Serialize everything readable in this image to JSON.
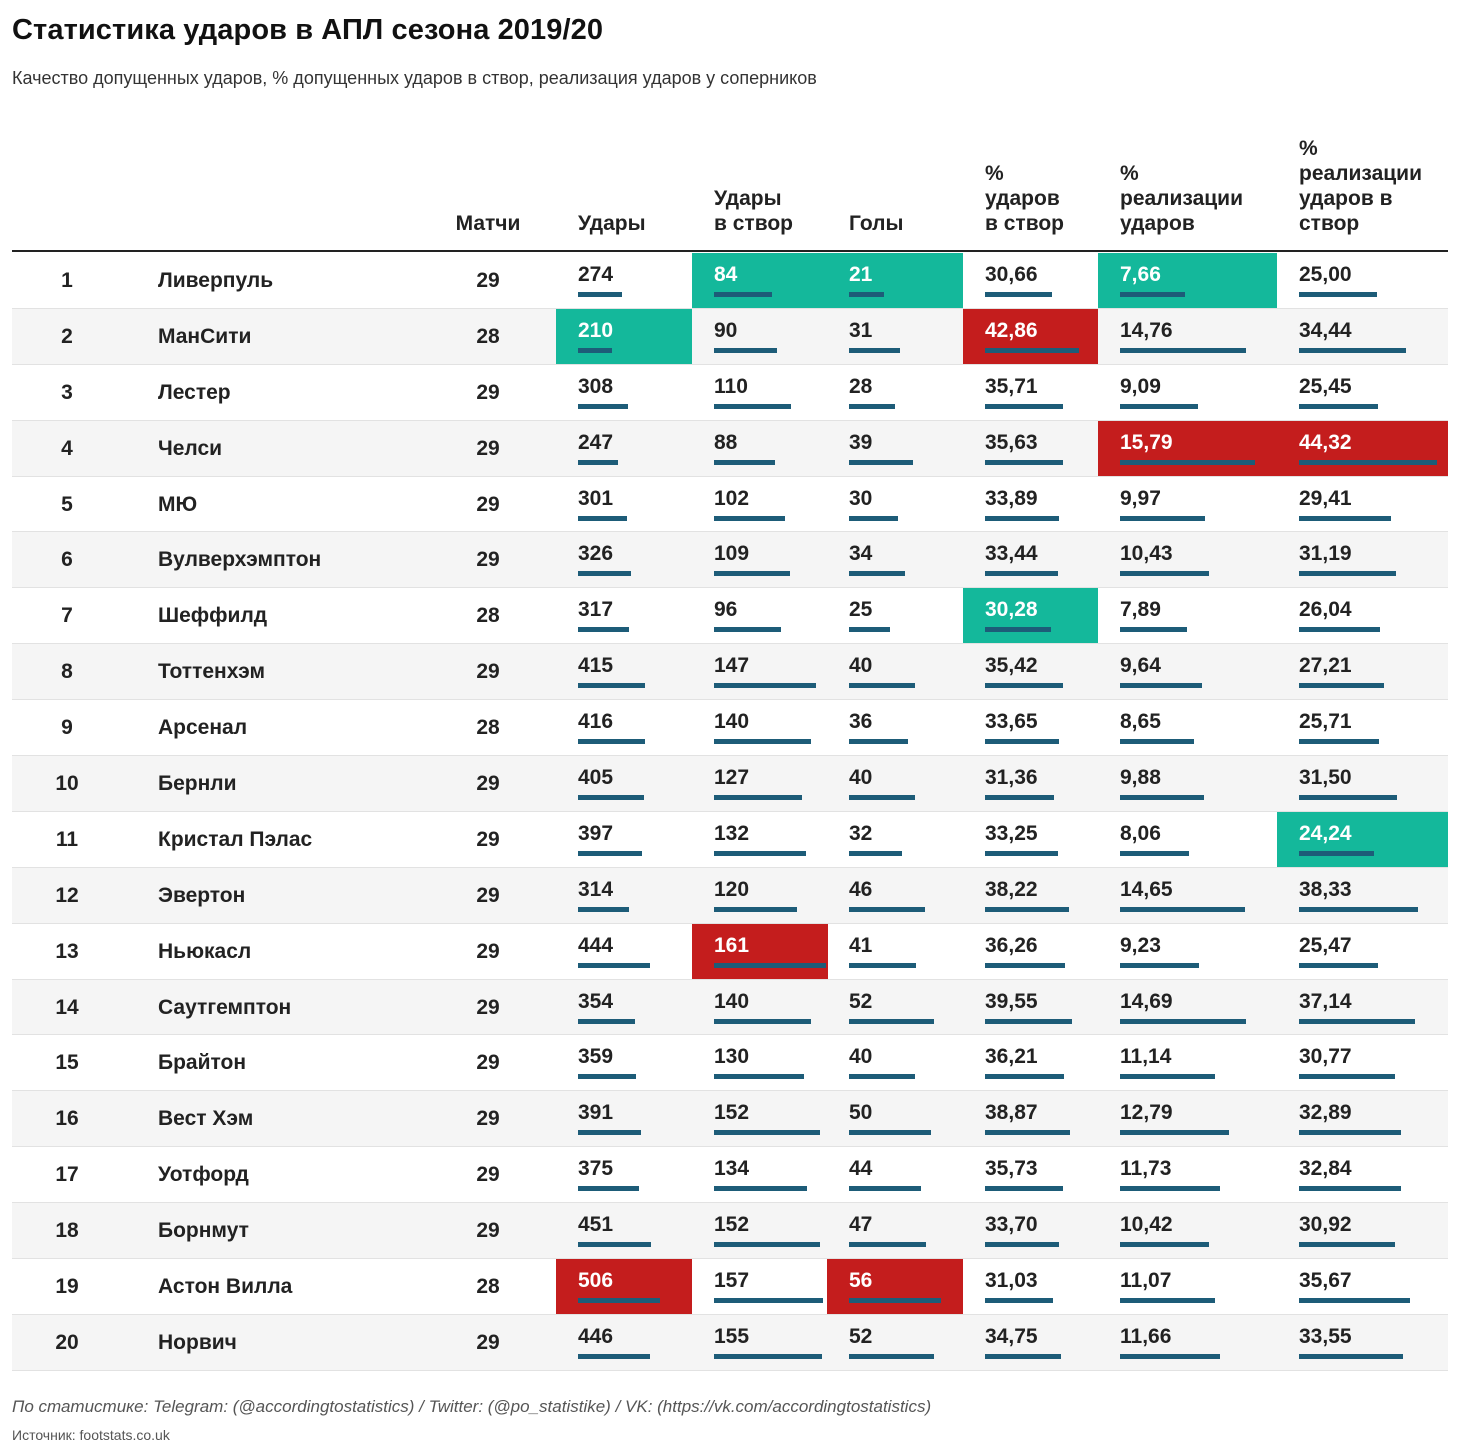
{
  "title": "Статистика ударов в АПЛ сезона 2019/20",
  "subtitle": "Качество допущенных ударов, % допущенных ударов в створ, реализация ударов у соперников",
  "footer": {
    "source_line": "По статистике: Telegram: (@accordingtostatistics) / Twitter: (@po_statistike) / VK: (https://vk.com/accordingtostatistics)",
    "data_source": "Источник: footstats.co.uk"
  },
  "colors": {
    "highlight_best": "#14b89b",
    "highlight_worst": "#c41d1d",
    "bar": "#1d5c78"
  },
  "chart_data": {
    "type": "table",
    "columns": [
      "",
      "",
      "Матчи",
      "Удары",
      "Удары\nв створ",
      "Голы",
      "%\nударов\nв створ",
      "%\nреализации\nударов",
      "%\nреализации\nударов в\nствор"
    ],
    "metric_max": [
      506,
      161,
      56,
      42.86,
      15.79,
      44.32
    ],
    "rows": [
      {
        "rank": "1",
        "team": "Ливерпуль",
        "games": "29",
        "metrics": [
          "274",
          "84",
          "21",
          "30,66",
          "7,66",
          "25,00"
        ],
        "values": [
          274,
          84,
          21,
          30.66,
          7.66,
          25.0
        ],
        "highlight": [
          "",
          "green",
          "green",
          "",
          "green",
          ""
        ]
      },
      {
        "rank": "2",
        "team": "МанСити",
        "games": "28",
        "metrics": [
          "210",
          "90",
          "31",
          "42,86",
          "14,76",
          "34,44"
        ],
        "values": [
          210,
          90,
          31,
          42.86,
          14.76,
          34.44
        ],
        "highlight": [
          "green",
          "",
          "",
          "red",
          "",
          ""
        ]
      },
      {
        "rank": "3",
        "team": "Лестер",
        "games": "29",
        "metrics": [
          "308",
          "110",
          "28",
          "35,71",
          "9,09",
          "25,45"
        ],
        "values": [
          308,
          110,
          28,
          35.71,
          9.09,
          25.45
        ],
        "highlight": [
          "",
          "",
          "",
          "",
          "",
          ""
        ]
      },
      {
        "rank": "4",
        "team": "Челси",
        "games": "29",
        "metrics": [
          "247",
          "88",
          "39",
          "35,63",
          "15,79",
          "44,32"
        ],
        "values": [
          247,
          88,
          39,
          35.63,
          15.79,
          44.32
        ],
        "highlight": [
          "",
          "",
          "",
          "",
          "red",
          "red"
        ]
      },
      {
        "rank": "5",
        "team": "МЮ",
        "games": "29",
        "metrics": [
          "301",
          "102",
          "30",
          "33,89",
          "9,97",
          "29,41"
        ],
        "values": [
          301,
          102,
          30,
          33.89,
          9.97,
          29.41
        ],
        "highlight": [
          "",
          "",
          "",
          "",
          "",
          ""
        ]
      },
      {
        "rank": "6",
        "team": "Вулверхэмптон",
        "games": "29",
        "metrics": [
          "326",
          "109",
          "34",
          "33,44",
          "10,43",
          "31,19"
        ],
        "values": [
          326,
          109,
          34,
          33.44,
          10.43,
          31.19
        ],
        "highlight": [
          "",
          "",
          "",
          "",
          "",
          ""
        ]
      },
      {
        "rank": "7",
        "team": "Шеффилд",
        "games": "28",
        "metrics": [
          "317",
          "96",
          "25",
          "30,28",
          "7,89",
          "26,04"
        ],
        "values": [
          317,
          96,
          25,
          30.28,
          7.89,
          26.04
        ],
        "highlight": [
          "",
          "",
          "",
          "green",
          "",
          ""
        ]
      },
      {
        "rank": "8",
        "team": "Тоттенхэм",
        "games": "29",
        "metrics": [
          "415",
          "147",
          "40",
          "35,42",
          "9,64",
          "27,21"
        ],
        "values": [
          415,
          147,
          40,
          35.42,
          9.64,
          27.21
        ],
        "highlight": [
          "",
          "",
          "",
          "",
          "",
          ""
        ]
      },
      {
        "rank": "9",
        "team": "Арсенал",
        "games": "28",
        "metrics": [
          "416",
          "140",
          "36",
          "33,65",
          "8,65",
          "25,71"
        ],
        "values": [
          416,
          140,
          36,
          33.65,
          8.65,
          25.71
        ],
        "highlight": [
          "",
          "",
          "",
          "",
          "",
          ""
        ]
      },
      {
        "rank": "10",
        "team": "Бернли",
        "games": "29",
        "metrics": [
          "405",
          "127",
          "40",
          "31,36",
          "9,88",
          "31,50"
        ],
        "values": [
          405,
          127,
          40,
          31.36,
          9.88,
          31.5
        ],
        "highlight": [
          "",
          "",
          "",
          "",
          "",
          ""
        ]
      },
      {
        "rank": "11",
        "team": "Кристал Пэлас",
        "games": "29",
        "metrics": [
          "397",
          "132",
          "32",
          "33,25",
          "8,06",
          "24,24"
        ],
        "values": [
          397,
          132,
          32,
          33.25,
          8.06,
          24.24
        ],
        "highlight": [
          "",
          "",
          "",
          "",
          "",
          "green"
        ]
      },
      {
        "rank": "12",
        "team": "Эвертон",
        "games": "29",
        "metrics": [
          "314",
          "120",
          "46",
          "38,22",
          "14,65",
          "38,33"
        ],
        "values": [
          314,
          120,
          46,
          38.22,
          14.65,
          38.33
        ],
        "highlight": [
          "",
          "",
          "",
          "",
          "",
          ""
        ]
      },
      {
        "rank": "13",
        "team": "Ньюкасл",
        "games": "29",
        "metrics": [
          "444",
          "161",
          "41",
          "36,26",
          "9,23",
          "25,47"
        ],
        "values": [
          444,
          161,
          41,
          36.26,
          9.23,
          25.47
        ],
        "highlight": [
          "",
          "red",
          "",
          "",
          "",
          ""
        ]
      },
      {
        "rank": "14",
        "team": "Саутгемптон",
        "games": "29",
        "metrics": [
          "354",
          "140",
          "52",
          "39,55",
          "14,69",
          "37,14"
        ],
        "values": [
          354,
          140,
          52,
          39.55,
          14.69,
          37.14
        ],
        "highlight": [
          "",
          "",
          "",
          "",
          "",
          ""
        ]
      },
      {
        "rank": "15",
        "team": "Брайтон",
        "games": "29",
        "metrics": [
          "359",
          "130",
          "40",
          "36,21",
          "11,14",
          "30,77"
        ],
        "values": [
          359,
          130,
          40,
          36.21,
          11.14,
          30.77
        ],
        "highlight": [
          "",
          "",
          "",
          "",
          "",
          ""
        ]
      },
      {
        "rank": "16",
        "team": "Вест Хэм",
        "games": "29",
        "metrics": [
          "391",
          "152",
          "50",
          "38,87",
          "12,79",
          "32,89"
        ],
        "values": [
          391,
          152,
          50,
          38.87,
          12.79,
          32.89
        ],
        "highlight": [
          "",
          "",
          "",
          "",
          "",
          ""
        ]
      },
      {
        "rank": "17",
        "team": "Уотфорд",
        "games": "29",
        "metrics": [
          "375",
          "134",
          "44",
          "35,73",
          "11,73",
          "32,84"
        ],
        "values": [
          375,
          134,
          44,
          35.73,
          11.73,
          32.84
        ],
        "highlight": [
          "",
          "",
          "",
          "",
          "",
          ""
        ]
      },
      {
        "rank": "18",
        "team": "Борнмут",
        "games": "29",
        "metrics": [
          "451",
          "152",
          "47",
          "33,70",
          "10,42",
          "30,92"
        ],
        "values": [
          451,
          152,
          47,
          33.7,
          10.42,
          30.92
        ],
        "highlight": [
          "",
          "",
          "",
          "",
          "",
          ""
        ]
      },
      {
        "rank": "19",
        "team": "Астон Вилла",
        "games": "28",
        "metrics": [
          "506",
          "157",
          "56",
          "31,03",
          "11,07",
          "35,67"
        ],
        "values": [
          506,
          157,
          56,
          31.03,
          11.07,
          35.67
        ],
        "highlight": [
          "red",
          "",
          "red",
          "",
          "",
          ""
        ]
      },
      {
        "rank": "20",
        "team": "Норвич",
        "games": "29",
        "metrics": [
          "446",
          "155",
          "52",
          "34,75",
          "11,66",
          "33,55"
        ],
        "values": [
          446,
          155,
          52,
          34.75,
          11.66,
          33.55
        ],
        "highlight": [
          "",
          "",
          "",
          "",
          "",
          ""
        ]
      }
    ]
  }
}
